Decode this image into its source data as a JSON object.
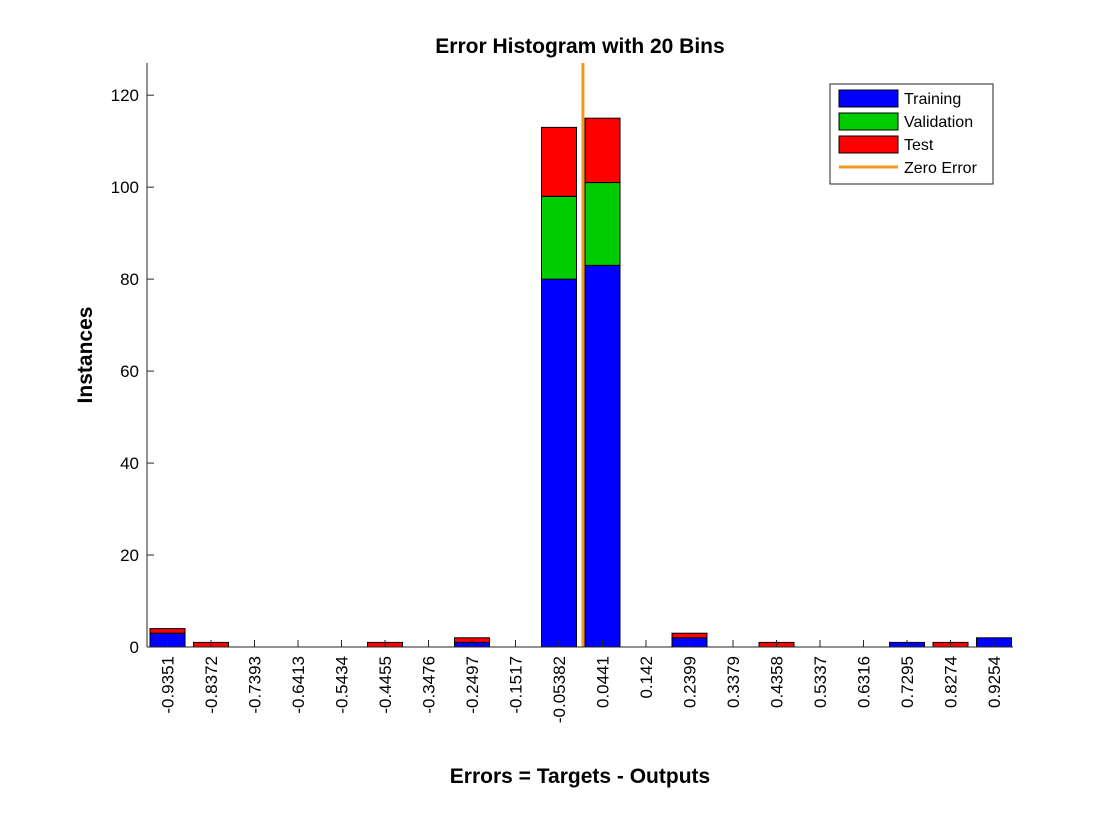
{
  "chart_data": {
    "type": "bar",
    "stacked": true,
    "title": "Error Histogram with 20 Bins",
    "xlabel": "Errors = Targets - Outputs",
    "ylabel": "Instances",
    "ylim": [
      0,
      127
    ],
    "yticks": [
      0,
      20,
      40,
      60,
      80,
      100,
      120
    ],
    "categories": [
      "-0.9351",
      "-0.8372",
      "-0.7393",
      "-0.6413",
      "-0.5434",
      "-0.4455",
      "-0.3476",
      "-0.2497",
      "-0.1517",
      "-0.05382",
      "0.0441",
      "0.142",
      "0.2399",
      "0.3379",
      "0.4358",
      "0.5337",
      "0.6316",
      "0.7295",
      "0.8274",
      "0.9254"
    ],
    "series": [
      {
        "name": "Training",
        "color": "#0000FF",
        "values": [
          3,
          0,
          0,
          0,
          0,
          0,
          0,
          1,
          0,
          80,
          83,
          0,
          2,
          0,
          0,
          0,
          0,
          1,
          0,
          2
        ]
      },
      {
        "name": "Validation",
        "color": "#00CC00",
        "values": [
          0,
          0,
          0,
          0,
          0,
          0,
          0,
          0,
          0,
          18,
          18,
          0,
          0,
          0,
          0,
          0,
          0,
          0,
          0,
          0
        ]
      },
      {
        "name": "Test",
        "color": "#FF0000",
        "values": [
          1,
          1,
          0,
          0,
          0,
          1,
          0,
          1,
          0,
          15,
          14,
          0,
          1,
          0,
          1,
          0,
          0,
          0,
          1,
          0
        ]
      }
    ],
    "zero_error": {
      "name": "Zero Error",
      "color": "#F39A1E",
      "x": 0
    },
    "grid": false,
    "legend_position": "top-right"
  }
}
